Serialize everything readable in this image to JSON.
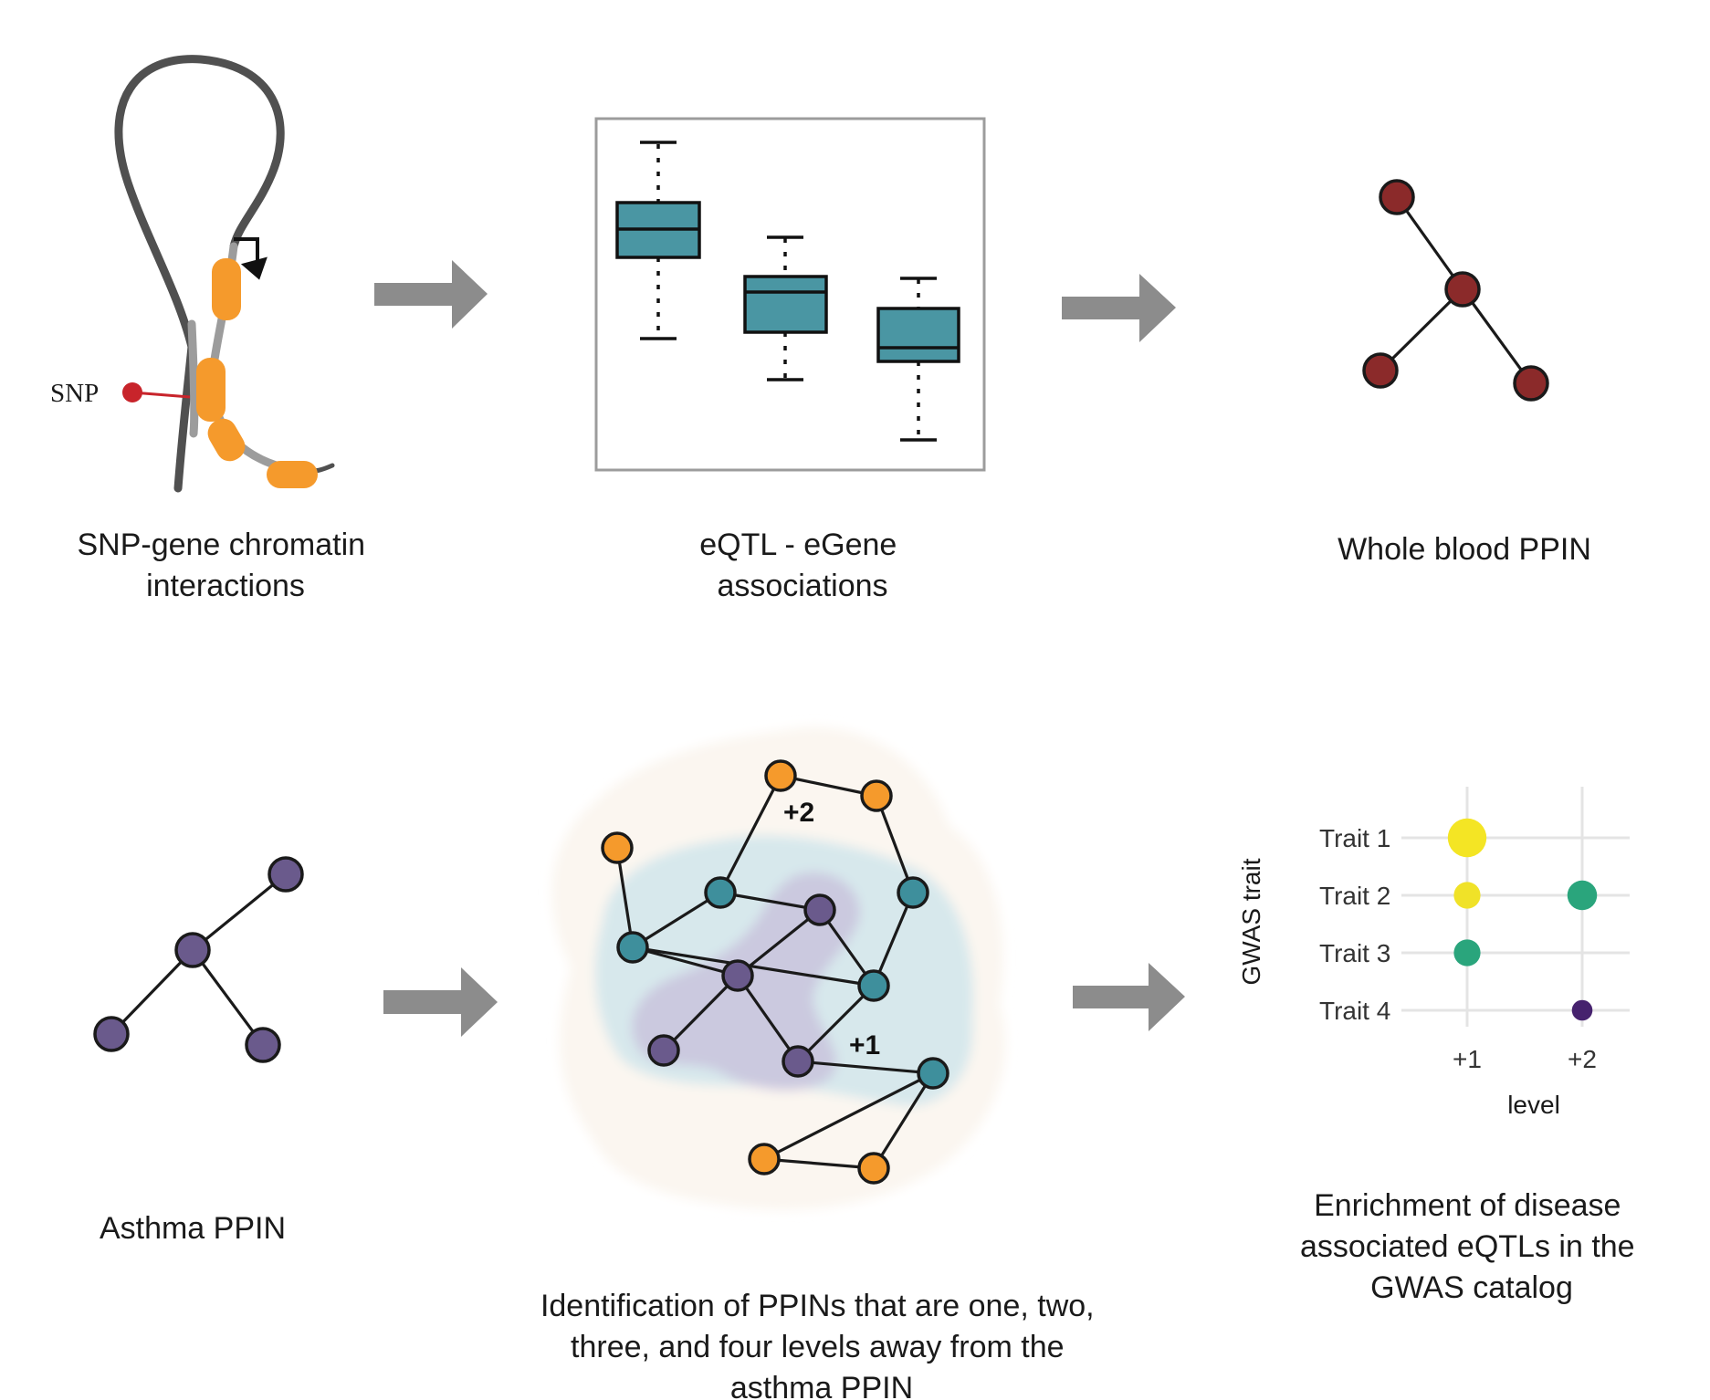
{
  "panels": {
    "chromatin": {
      "snp_label": "SNP",
      "caption": [
        "SNP-gene chromatin",
        "interactions"
      ]
    },
    "eqtl": {
      "caption": [
        "eQTL - eGene",
        "associations"
      ]
    },
    "whole_blood": {
      "caption": [
        "Whole blood PPIN"
      ]
    },
    "asthma": {
      "caption": [
        "Asthma PPIN"
      ]
    },
    "levels": {
      "label_plus2": "+2",
      "label_plus1": "+1",
      "caption": [
        "Identification of PPINs that are one, two,",
        "three, and four levels away from the",
        "asthma PPIN"
      ]
    },
    "enrichment": {
      "caption": [
        "Enrichment of disease",
        "associated eQTLs in the",
        "GWAS catalog"
      ]
    }
  },
  "colors": {
    "orange": "#f59a2c",
    "teal_box": "#4a96a3",
    "dark_red": "#8b2a2a",
    "purple": "#6a5a8c",
    "teal_node": "#3e8f9c",
    "arrow": "#8c8c8c"
  },
  "chart_data": {
    "type": "scatter",
    "ylabel": "GWAS trait",
    "xlabel": "level",
    "x_categories": [
      "+1",
      "+2"
    ],
    "y_categories": [
      "Trait 1",
      "Trait 2",
      "Trait 3",
      "Trait 4"
    ],
    "points": [
      {
        "x": "+1",
        "y": "Trait 1",
        "size": 4,
        "color": "#f4e524"
      },
      {
        "x": "+1",
        "y": "Trait 2",
        "size": 2,
        "color": "#f0e228"
      },
      {
        "x": "+2",
        "y": "Trait 2",
        "size": 2.5,
        "color": "#2aa57c"
      },
      {
        "x": "+1",
        "y": "Trait 3",
        "size": 2,
        "color": "#2aa57c"
      },
      {
        "x": "+2",
        "y": "Trait 4",
        "size": 1,
        "color": "#46226e"
      }
    ],
    "grid": true
  }
}
